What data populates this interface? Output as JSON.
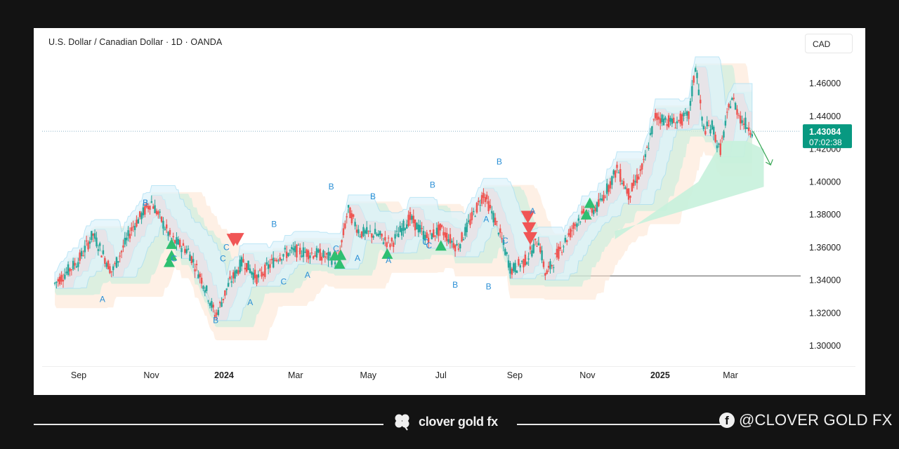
{
  "header": {
    "title": "U.S. Dollar / Canadian Dollar · 1D · OANDA",
    "currency": "CAD"
  },
  "footer": {
    "brand": "clover gold fx",
    "social_handle": "@CLOVER GOLD FX",
    "social_icon": "facebook-icon"
  },
  "colors": {
    "up": "#26a69a",
    "down": "#ef5350",
    "wave_label": "#2a8fd6",
    "price_tag": "#089981",
    "band": "#a8def3"
  },
  "chart_data": {
    "type": "candlestick",
    "title": "",
    "ylim": [
      1.29,
      1.48
    ],
    "y_ticks": [
      "1.46000",
      "1.44000",
      "1.42000",
      "1.40000",
      "1.38000",
      "1.36000",
      "1.34000",
      "1.32000",
      "1.30000"
    ],
    "y_tick_values": [
      1.46,
      1.44,
      1.42,
      1.4,
      1.38,
      1.36,
      1.34,
      1.32,
      1.3
    ],
    "x_ticks": [
      "Sep",
      "Nov",
      "2024",
      "Mar",
      "May",
      "Jul",
      "Sep",
      "Nov",
      "2025",
      "Mar"
    ],
    "x_tick_days": [
      0,
      61,
      122,
      182,
      243,
      304,
      366,
      427,
      488,
      547
    ],
    "x_range_days": [
      -20,
      600
    ],
    "last_price": "1.43084",
    "last_price_value": 1.43084,
    "countdown": "07:02:38",
    "support_level": 1.3427,
    "support_start_day": 388,
    "zigzag": [
      {
        "d": -20,
        "p": 1.338
      },
      {
        "d": 0,
        "p": 1.352
      },
      {
        "d": 12,
        "p": 1.368
      },
      {
        "d": 28,
        "p": 1.345
      },
      {
        "d": 45,
        "p": 1.372
      },
      {
        "d": 61,
        "p": 1.388
      },
      {
        "d": 78,
        "p": 1.365
      },
      {
        "d": 92,
        "p": 1.358
      },
      {
        "d": 105,
        "p": 1.338
      },
      {
        "d": 115,
        "p": 1.318
      },
      {
        "d": 125,
        "p": 1.336
      },
      {
        "d": 138,
        "p": 1.352
      },
      {
        "d": 150,
        "p": 1.341
      },
      {
        "d": 168,
        "p": 1.355
      },
      {
        "d": 182,
        "p": 1.358
      },
      {
        "d": 200,
        "p": 1.356
      },
      {
        "d": 218,
        "p": 1.352
      },
      {
        "d": 226,
        "p": 1.383
      },
      {
        "d": 236,
        "p": 1.369
      },
      {
        "d": 250,
        "p": 1.368
      },
      {
        "d": 262,
        "p": 1.362
      },
      {
        "d": 278,
        "p": 1.378
      },
      {
        "d": 292,
        "p": 1.366
      },
      {
        "d": 304,
        "p": 1.371
      },
      {
        "d": 318,
        "p": 1.36
      },
      {
        "d": 340,
        "p": 1.393
      },
      {
        "d": 352,
        "p": 1.372
      },
      {
        "d": 363,
        "p": 1.346
      },
      {
        "d": 375,
        "p": 1.352
      },
      {
        "d": 386,
        "p": 1.365
      },
      {
        "d": 392,
        "p": 1.343
      },
      {
        "d": 405,
        "p": 1.36
      },
      {
        "d": 420,
        "p": 1.378
      },
      {
        "d": 436,
        "p": 1.385
      },
      {
        "d": 452,
        "p": 1.408
      },
      {
        "d": 462,
        "p": 1.392
      },
      {
        "d": 474,
        "p": 1.41
      },
      {
        "d": 484,
        "p": 1.44
      },
      {
        "d": 500,
        "p": 1.436
      },
      {
        "d": 512,
        "p": 1.44
      },
      {
        "d": 518,
        "p": 1.472
      },
      {
        "d": 524,
        "p": 1.432
      },
      {
        "d": 532,
        "p": 1.434
      },
      {
        "d": 538,
        "p": 1.418
      },
      {
        "d": 548,
        "p": 1.452
      },
      {
        "d": 556,
        "p": 1.438
      },
      {
        "d": 566,
        "p": 1.431
      }
    ],
    "wave_labels": [
      {
        "t": "A",
        "d": 20,
        "p": 1.3268
      },
      {
        "t": "B",
        "d": 56,
        "p": 1.3855
      },
      {
        "t": "B",
        "d": 56,
        "p": 1.3855
      },
      {
        "t": "C",
        "d": 80,
        "p": 1.3515
      },
      {
        "t": "B",
        "d": 115,
        "p": 1.3138
      },
      {
        "t": "C",
        "d": 124,
        "p": 1.3585
      },
      {
        "t": "C",
        "d": 121,
        "p": 1.3515
      },
      {
        "t": "A",
        "d": 144,
        "p": 1.3248
      },
      {
        "t": "B",
        "d": 164,
        "p": 1.3725
      },
      {
        "t": "C",
        "d": 172,
        "p": 1.3375
      },
      {
        "t": "A",
        "d": 192,
        "p": 1.3415
      },
      {
        "t": "B",
        "d": 212,
        "p": 1.3955
      },
      {
        "t": "C",
        "d": 216,
        "p": 1.3575
      },
      {
        "t": "B",
        "d": 247,
        "p": 1.3895
      },
      {
        "t": "A",
        "d": 234,
        "p": 1.3518
      },
      {
        "t": "A",
        "d": 260,
        "p": 1.3505
      },
      {
        "t": "C",
        "d": 291,
        "p": 1.3615
      },
      {
        "t": "B",
        "d": 297,
        "p": 1.3965
      },
      {
        "t": "C",
        "d": 294,
        "p": 1.3595
      },
      {
        "t": "B",
        "d": 316,
        "p": 1.3355
      },
      {
        "t": "B",
        "d": 344,
        "p": 1.3345
      },
      {
        "t": "C",
        "d": 358,
        "p": 1.3625
      },
      {
        "t": "A",
        "d": 342,
        "p": 1.3755
      },
      {
        "t": "B",
        "d": 353,
        "p": 1.4105
      },
      {
        "t": "A",
        "d": 381,
        "p": 1.3805
      }
    ],
    "signals_up": [
      {
        "d": 78,
        "p": 1.3625
      },
      {
        "d": 78,
        "p": 1.3555
      },
      {
        "d": 76,
        "p": 1.3515
      },
      {
        "d": 215,
        "p": 1.3555
      },
      {
        "d": 220,
        "p": 1.3558
      },
      {
        "d": 219,
        "p": 1.3505
      },
      {
        "d": 259,
        "p": 1.3565
      },
      {
        "d": 304,
        "p": 1.3615
      },
      {
        "d": 429,
        "p": 1.3875
      },
      {
        "d": 426,
        "p": 1.3805
      }
    ],
    "signals_down": [
      {
        "d": 130,
        "p": 1.3645
      },
      {
        "d": 133,
        "p": 1.365
      },
      {
        "d": 377,
        "p": 1.3785
      },
      {
        "d": 378,
        "p": 1.3715
      },
      {
        "d": 379,
        "p": 1.3655
      }
    ]
  }
}
